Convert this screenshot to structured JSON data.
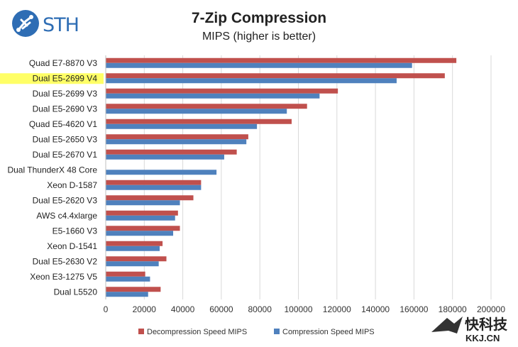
{
  "branding": {
    "logo_text": "STH",
    "watermark_cn": "快科技",
    "watermark_url": "KKJ.CN"
  },
  "colors": {
    "decompression": "#c0504d",
    "compression": "#4f81bd",
    "highlight": "#ffff66",
    "grid": "#d9d9d9",
    "logo": "#2e6db4"
  },
  "chart_data": {
    "type": "bar",
    "orientation": "horizontal",
    "title": "7-Zip Compression",
    "subtitle": "MIPS (higher is better)",
    "xlim": [
      0,
      200000
    ],
    "x_ticks": [
      0,
      20000,
      40000,
      60000,
      80000,
      100000,
      120000,
      140000,
      160000,
      180000,
      200000
    ],
    "grid": true,
    "legend_position": "bottom",
    "highlighted_category": "Dual E5-2699 V4",
    "categories": [
      "Quad E7-8870 V3",
      "Dual E5-2699 V4",
      "Dual E5-2699 V3",
      "Dual E5-2690 V3",
      "Quad E5-4620 V1",
      "Dual E5-2650 V3",
      "Dual E5-2670 V1",
      "Dual ThunderX 48 Core",
      "Xeon D-1587",
      "Dual E5-2620 V3",
      "AWS c4.4xlarge",
      "E5-1660 V3",
      "Xeon D-1541",
      "Dual E5-2630 V2",
      "Xeon E3-1275 V5",
      "Dual L5520"
    ],
    "series": [
      {
        "name": "Decompression Speed MIPS",
        "values": [
          182000,
          176000,
          120500,
          104500,
          96500,
          74000,
          68000,
          0,
          49500,
          45500,
          37500,
          38500,
          29500,
          31500,
          20500,
          28500
        ]
      },
      {
        "name": "Compression Speed MIPS",
        "values": [
          159000,
          151000,
          111000,
          94000,
          78500,
          73000,
          61500,
          57500,
          49500,
          38500,
          36000,
          35000,
          28000,
          27500,
          23000,
          22000
        ]
      }
    ]
  }
}
